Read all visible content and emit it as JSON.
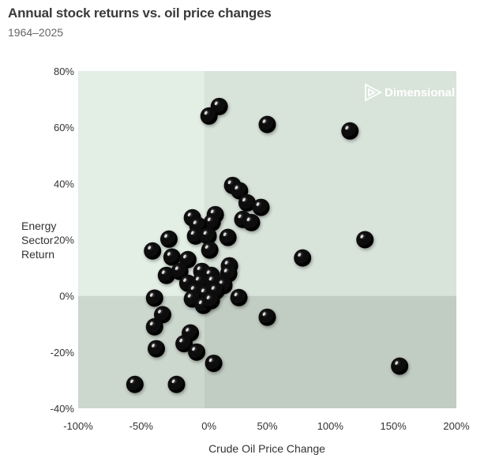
{
  "chart_data": {
    "type": "scatter",
    "title": "Annual stock returns vs. oil price changes",
    "subtitle": "1964–2025",
    "xlabel": "Crude Oil Price Change",
    "ylabel_lines": [
      "Energy",
      "Sector",
      "Return"
    ],
    "xlim": [
      -100,
      200
    ],
    "ylim": [
      -40,
      80
    ],
    "x_ticks": [
      -100,
      -50,
      0,
      50,
      100,
      150,
      200
    ],
    "x_tick_labels": [
      "-100%",
      "-50%",
      "0%",
      "50%",
      "100%",
      "150%",
      "200%"
    ],
    "y_ticks": [
      80,
      60,
      40,
      20,
      0,
      -20,
      -40
    ],
    "y_tick_labels": [
      "80%",
      "60%",
      "40%",
      "20%",
      "0%",
      "-20%",
      "-40%"
    ],
    "grid": false,
    "logo_text": "Dimensional",
    "quadrant_colors": {
      "top_left": "#e3eee5",
      "top_right": "#d8e3da",
      "bottom_left": "#ccd7cd",
      "bottom_right": "#c1ccc2"
    },
    "marker_color": "#000000",
    "points": [
      [
        11.9,
        67.4
      ],
      [
        3.8,
        64
      ],
      [
        50,
        61
      ],
      [
        115.6,
        58.7
      ],
      [
        22.5,
        39.3
      ],
      [
        28,
        37.4
      ],
      [
        34,
        33.1
      ],
      [
        45,
        31.5
      ],
      [
        30.6,
        27.2
      ],
      [
        37.5,
        26.1
      ],
      [
        -9.4,
        27.8
      ],
      [
        8.8,
        28.9
      ],
      [
        6.3,
        26.1
      ],
      [
        -5,
        25
      ],
      [
        -6.9,
        21.3
      ],
      [
        18.8,
        20.8
      ],
      [
        3.1,
        21.3
      ],
      [
        4.4,
        16.3
      ],
      [
        -28,
        20.2
      ],
      [
        -41,
        16
      ],
      [
        -25.6,
        13.8
      ],
      [
        -13,
        12.9
      ],
      [
        127.5,
        20
      ],
      [
        78,
        13.5
      ],
      [
        20,
        10.7
      ],
      [
        19.4,
        7.9
      ],
      [
        -30,
        7.3
      ],
      [
        -19.4,
        8.7
      ],
      [
        -1.9,
        8.7
      ],
      [
        5.6,
        7.3
      ],
      [
        -13,
        4.5
      ],
      [
        -3,
        5
      ],
      [
        7.5,
        5
      ],
      [
        15.6,
        3.7
      ],
      [
        -6.9,
        1.7
      ],
      [
        1.3,
        0.8
      ],
      [
        9.4,
        1.7
      ],
      [
        -9.4,
        -1.1
      ],
      [
        -0.6,
        -3.4
      ],
      [
        5.6,
        -1.7
      ],
      [
        27.5,
        -0.6
      ],
      [
        -39.4,
        -0.8
      ],
      [
        -33,
        -6.7
      ],
      [
        -39.4,
        -11
      ],
      [
        50,
        -7.6
      ],
      [
        -11,
        -13.2
      ],
      [
        -16,
        -17
      ],
      [
        -6,
        -20
      ],
      [
        -38,
        -18.8
      ],
      [
        7.5,
        -24
      ],
      [
        155,
        -25
      ],
      [
        -55,
        -31.5
      ],
      [
        -22,
        -31.5
      ]
    ]
  }
}
